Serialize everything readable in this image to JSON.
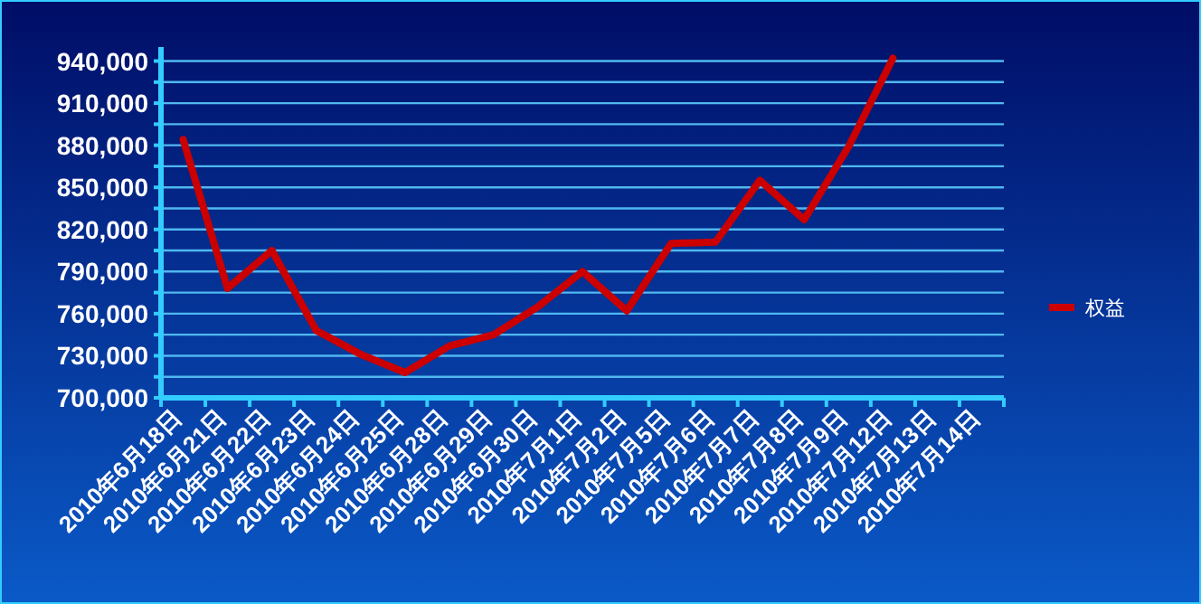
{
  "chart_data": {
    "type": "line",
    "categories": [
      "2010年6月18日",
      "2010年6月21日",
      "2010年6月22日",
      "2010年6月23日",
      "2010年6月24日",
      "2010年6月25日",
      "2010年6月28日",
      "2010年6月29日",
      "2010年6月30日",
      "2010年7月1日",
      "2010年7月2日",
      "2010年7月5日",
      "2010年7月6日",
      "2010年7月7日",
      "2010年7月8日",
      "2010年7月9日",
      "2010年7月12日",
      "2010年7月13日",
      "2010年7月14日"
    ],
    "series": [
      {
        "name": "权益",
        "color": "#cc0000",
        "values": [
          884000,
          778000,
          805000,
          748000,
          731000,
          718000,
          737000,
          745000,
          765000,
          790000,
          762000,
          810000,
          811000,
          855000,
          827000,
          879000,
          942000,
          null,
          null
        ]
      }
    ],
    "ylim": [
      700000,
      950000
    ],
    "yticks": [
      {
        "value": 700000,
        "label": "700,000"
      },
      {
        "value": 715000,
        "label": null
      },
      {
        "value": 730000,
        "label": "730,000"
      },
      {
        "value": 745000,
        "label": null
      },
      {
        "value": 760000,
        "label": "760,000"
      },
      {
        "value": 775000,
        "label": null
      },
      {
        "value": 790000,
        "label": "790,000"
      },
      {
        "value": 805000,
        "label": null
      },
      {
        "value": 820000,
        "label": "820,000"
      },
      {
        "value": 835000,
        "label": null
      },
      {
        "value": 850000,
        "label": "850,000"
      },
      {
        "value": 865000,
        "label": null
      },
      {
        "value": 880000,
        "label": "880,000"
      },
      {
        "value": 895000,
        "label": null
      },
      {
        "value": 910000,
        "label": "910,000"
      },
      {
        "value": 925000,
        "label": null
      },
      {
        "value": 940000,
        "label": "940,000"
      }
    ],
    "grid": "y",
    "legend": "right",
    "marker": "none",
    "line_style": "solid"
  }
}
